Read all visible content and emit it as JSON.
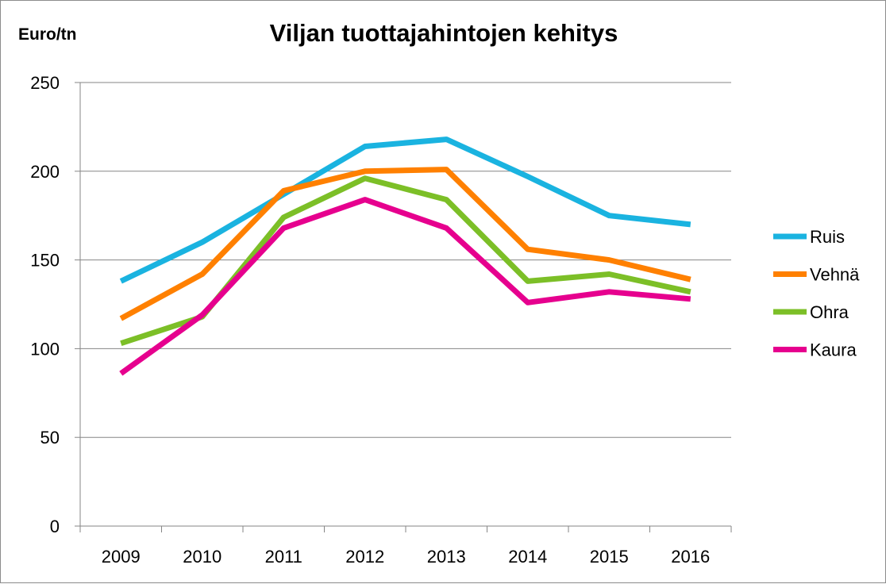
{
  "chart_data": {
    "type": "line",
    "title": "Viljan tuottajahintojen kehitys",
    "ylabel": "Euro/tn",
    "xlabel": "",
    "categories": [
      "2009",
      "2010",
      "2011",
      "2012",
      "2013",
      "2014",
      "2015",
      "2016"
    ],
    "ylim": [
      0,
      250
    ],
    "yticks": [
      "0",
      "50",
      "100",
      "150",
      "200",
      "250"
    ],
    "grid": true,
    "legend_position": "right",
    "series": [
      {
        "name": "Ruis",
        "color": "#1AB3E0",
        "values": [
          138,
          160,
          187,
          214,
          218,
          197,
          175,
          170
        ]
      },
      {
        "name": "Vehnä",
        "color": "#FF8000",
        "values": [
          117,
          142,
          189,
          200,
          201,
          156,
          150,
          139
        ]
      },
      {
        "name": "Ohra",
        "color": "#7CBF27",
        "values": [
          103,
          118,
          174,
          196,
          184,
          138,
          142,
          132
        ]
      },
      {
        "name": "Kaura",
        "color": "#E6008E",
        "values": [
          86,
          119,
          168,
          184,
          168,
          126,
          132,
          128
        ]
      }
    ]
  }
}
